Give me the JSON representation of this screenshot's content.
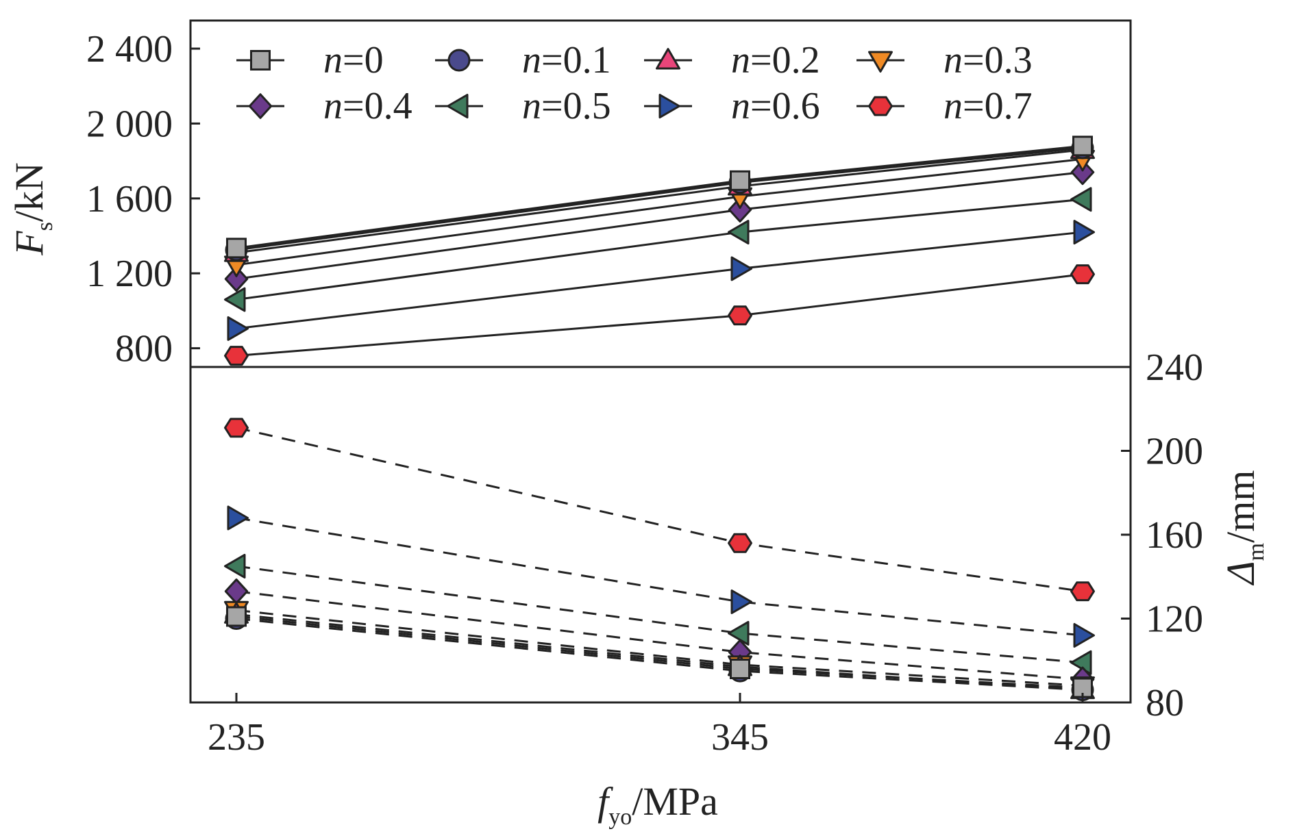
{
  "chart_data": {
    "type": "line",
    "x_categories": [
      "235",
      "345",
      "420"
    ],
    "xlabel": {
      "main": "f",
      "sub": "yo",
      "unit": "/MPa"
    },
    "top_panel": {
      "ylabel": {
        "main": "F",
        "sub": "s",
        "unit": "/kN"
      },
      "ylim": [
        700,
        2550
      ],
      "yticks": [
        800,
        1200,
        1600,
        2000,
        2400
      ],
      "ytick_labels": [
        "800",
        "1 200",
        "1 600",
        "2 000",
        "2 400"
      ],
      "line_style": "solid"
    },
    "bottom_panel": {
      "ylabel": {
        "main": "Δ",
        "sub": "m",
        "unit": "/mm"
      },
      "ylim": [
        80,
        240
      ],
      "yticks": [
        80,
        120,
        160,
        200,
        240
      ],
      "ytick_labels": [
        "80",
        "120",
        "160",
        "200",
        "240"
      ],
      "line_style": "dashed"
    },
    "legend_position": "top",
    "series": [
      {
        "name": "n=0",
        "prefix": "n",
        "value_label": "=0",
        "marker": "square",
        "color": "#a6a6a6",
        "Fs": [
          1335,
          1695,
          1880
        ],
        "Delta": [
          121,
          96,
          87
        ]
      },
      {
        "name": "n=0.1",
        "prefix": "n",
        "value_label": "=0.1",
        "marker": "circle",
        "color": "#4a4a8c",
        "Fs": [
          1325,
          1685,
          1870
        ],
        "Delta": [
          120,
          95,
          86
        ]
      },
      {
        "name": "n=0.2",
        "prefix": "n",
        "value_label": "=0.2",
        "marker": "triangle-up",
        "color": "#e8457a",
        "Fs": [
          1310,
          1665,
          1860
        ],
        "Delta": [
          122,
          97,
          86
        ]
      },
      {
        "name": "n=0.3",
        "prefix": "n",
        "value_label": "=0.3",
        "marker": "triangle-down",
        "color": "#f08a24",
        "Fs": [
          1245,
          1610,
          1810
        ],
        "Delta": [
          124,
          98,
          88
        ]
      },
      {
        "name": "n=0.4",
        "prefix": "n",
        "value_label": "=0.4",
        "marker": "diamond",
        "color": "#6a3a8a",
        "Fs": [
          1170,
          1540,
          1740
        ],
        "Delta": [
          133,
          104,
          91
        ]
      },
      {
        "name": "n=0.5",
        "prefix": "n",
        "value_label": "=0.5",
        "marker": "triangle-left",
        "color": "#3f7a5c",
        "Fs": [
          1060,
          1420,
          1595
        ],
        "Delta": [
          145,
          113,
          99
        ]
      },
      {
        "name": "n=0.6",
        "prefix": "n",
        "value_label": "=0.6",
        "marker": "triangle-right",
        "color": "#2b4f9e",
        "Fs": [
          905,
          1225,
          1420
        ],
        "Delta": [
          168,
          128,
          112
        ]
      },
      {
        "name": "n=0.7",
        "prefix": "n",
        "value_label": "=0.7",
        "marker": "hexagon",
        "color": "#e8323a",
        "Fs": [
          760,
          975,
          1195
        ],
        "Delta": [
          211,
          156,
          133
        ]
      }
    ]
  }
}
